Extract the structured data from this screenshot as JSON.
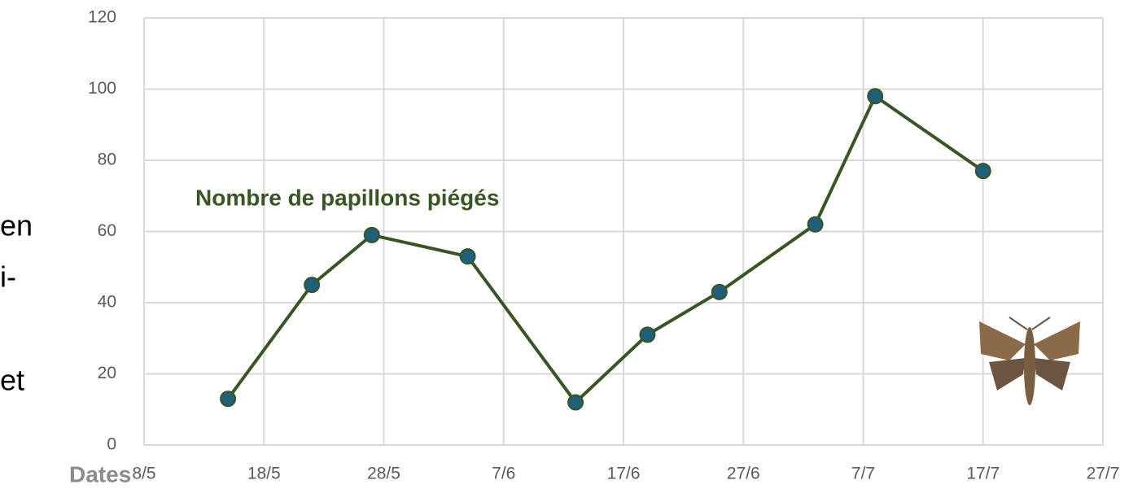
{
  "chart_data": {
    "type": "line",
    "annotation": "Nombre de papillons piégés",
    "xlabel": "Dates",
    "side_text": [
      "en",
      "i-",
      "et"
    ],
    "x": [
      135,
      142,
      147,
      155,
      164,
      170,
      176,
      184,
      189,
      198
    ],
    "values": [
      13,
      45,
      59,
      53,
      12,
      31,
      43,
      62,
      98,
      77
    ],
    "color": "#375623",
    "marker_color": "#1f5f7a",
    "xlim": [
      128,
      208
    ],
    "xticks": [
      {
        "value": 128,
        "label": "8/5"
      },
      {
        "value": 138,
        "label": "18/5"
      },
      {
        "value": 148,
        "label": "28/5"
      },
      {
        "value": 158,
        "label": "7/6"
      },
      {
        "value": 168,
        "label": "17/6"
      },
      {
        "value": 178,
        "label": "27/6"
      },
      {
        "value": 188,
        "label": "7/7"
      },
      {
        "value": 198,
        "label": "17/7"
      },
      {
        "value": 208,
        "label": "27/7"
      }
    ],
    "ylim": [
      0,
      120
    ],
    "yticks": [
      0,
      20,
      40,
      60,
      80,
      100,
      120
    ],
    "grid": true
  }
}
